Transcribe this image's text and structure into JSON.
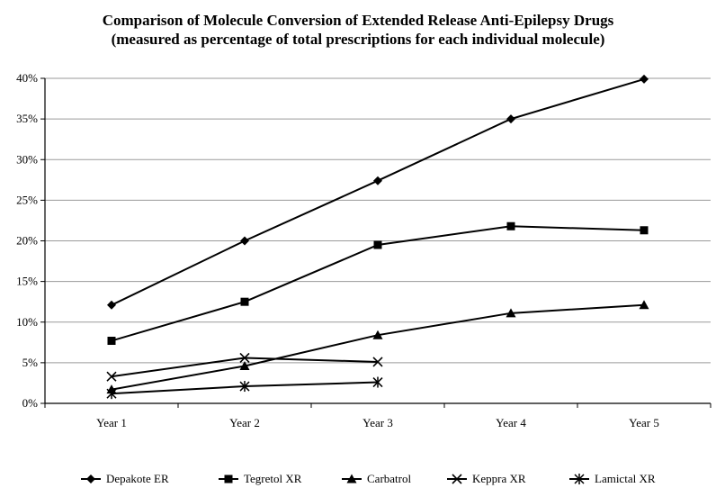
{
  "chart_data": {
    "type": "line",
    "title": "Comparison of Molecule Conversion of Extended Release Anti-Epilepsy Drugs",
    "subtitle": "(measured as percentage of total prescriptions for each individual molecule)",
    "xlabel": "",
    "ylabel": "",
    "categories": [
      "Year 1",
      "Year 2",
      "Year 3",
      "Year 4",
      "Year 5"
    ],
    "ylim": [
      0,
      40
    ],
    "yticks": [
      "0%",
      "5%",
      "10%",
      "15%",
      "20%",
      "25%",
      "30%",
      "35%",
      "40%"
    ],
    "grid": true,
    "legend": "bottom",
    "series": [
      {
        "name": "Depakote ER",
        "marker": "diamond",
        "values": [
          12.1,
          20.0,
          27.4,
          35.0,
          39.9
        ]
      },
      {
        "name": "Tegretol XR",
        "marker": "square",
        "values": [
          7.7,
          12.5,
          19.5,
          21.8,
          21.3
        ]
      },
      {
        "name": "Carbatrol",
        "marker": "triangle",
        "values": [
          1.7,
          4.6,
          8.4,
          11.1,
          12.1
        ]
      },
      {
        "name": "Keppra XR",
        "marker": "x",
        "values": [
          3.3,
          5.6,
          5.1,
          null,
          null
        ]
      },
      {
        "name": "Lamictal XR",
        "marker": "asterisk",
        "values": [
          1.2,
          2.1,
          2.6,
          null,
          null
        ]
      }
    ]
  }
}
